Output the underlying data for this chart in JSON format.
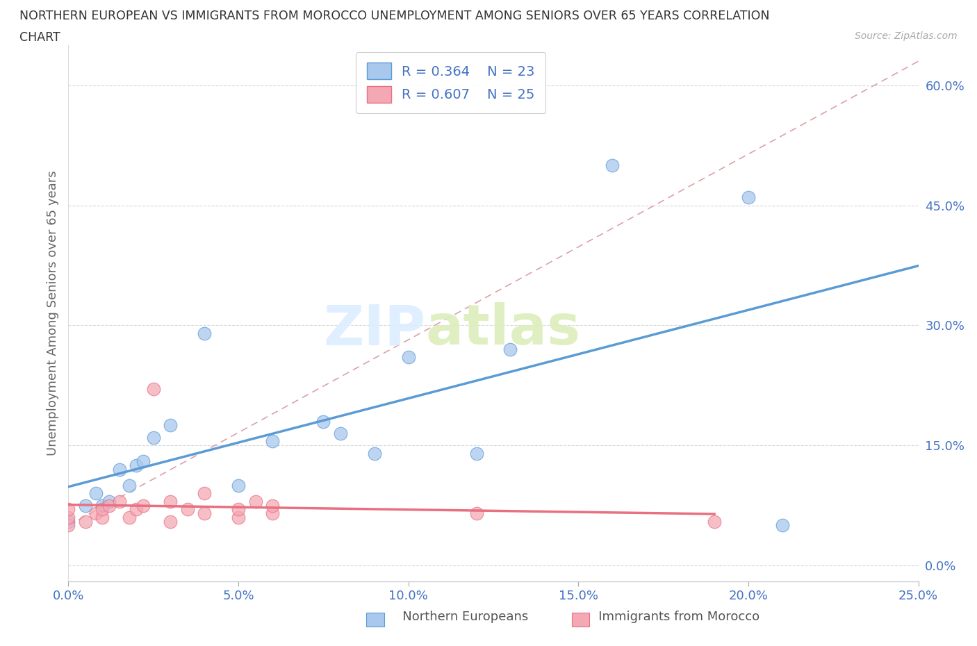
{
  "title_line1": "NORTHERN EUROPEAN VS IMMIGRANTS FROM MOROCCO UNEMPLOYMENT AMONG SENIORS OVER 65 YEARS CORRELATION",
  "title_line2": "CHART",
  "source": "Source: ZipAtlas.com",
  "ylabel": "Unemployment Among Seniors over 65 years",
  "R_northern": 0.364,
  "N_northern": 23,
  "R_morocco": 0.607,
  "N_morocco": 25,
  "color_northern": "#A8C8EE",
  "color_morocco": "#F4A8B4",
  "trendline_northern_color": "#5B9BD5",
  "trendline_morocco_color": "#E87080",
  "trendline_dashed_color": "#DDA0A8",
  "background_color": "#FFFFFF",
  "watermark_zip": "ZIP",
  "watermark_atlas": "atlas",
  "xlim": [
    0.0,
    0.25
  ],
  "ylim": [
    -0.02,
    0.65
  ],
  "xtick_vals": [
    0.0,
    0.05,
    0.1,
    0.15,
    0.2,
    0.25
  ],
  "ytick_vals": [
    0.0,
    0.15,
    0.3,
    0.45,
    0.6
  ],
  "northern_x": [
    0.0,
    0.005,
    0.008,
    0.01,
    0.012,
    0.015,
    0.018,
    0.02,
    0.022,
    0.025,
    0.03,
    0.04,
    0.05,
    0.06,
    0.075,
    0.08,
    0.09,
    0.1,
    0.12,
    0.13,
    0.16,
    0.2,
    0.21
  ],
  "northern_y": [
    0.055,
    0.075,
    0.09,
    0.075,
    0.08,
    0.12,
    0.1,
    0.125,
    0.13,
    0.16,
    0.175,
    0.29,
    0.1,
    0.155,
    0.18,
    0.165,
    0.14,
    0.26,
    0.14,
    0.27,
    0.5,
    0.46,
    0.05
  ],
  "morocco_x": [
    0.0,
    0.0,
    0.0,
    0.005,
    0.008,
    0.01,
    0.01,
    0.012,
    0.015,
    0.018,
    0.02,
    0.022,
    0.025,
    0.03,
    0.03,
    0.035,
    0.04,
    0.04,
    0.05,
    0.05,
    0.055,
    0.06,
    0.06,
    0.12,
    0.19
  ],
  "morocco_y": [
    0.05,
    0.06,
    0.07,
    0.055,
    0.065,
    0.06,
    0.07,
    0.075,
    0.08,
    0.06,
    0.07,
    0.075,
    0.22,
    0.055,
    0.08,
    0.07,
    0.065,
    0.09,
    0.06,
    0.07,
    0.08,
    0.065,
    0.075,
    0.065,
    0.055
  ]
}
